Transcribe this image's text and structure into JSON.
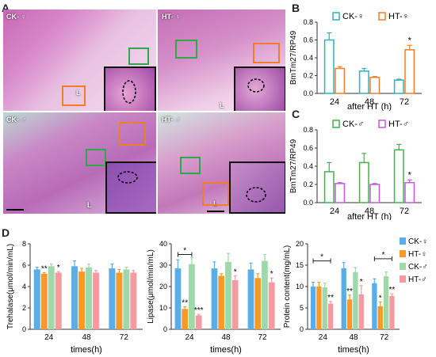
{
  "panel_labels": {
    "a": "A",
    "b": "B",
    "c": "C",
    "d": "D"
  },
  "micrographs": {
    "ck_female": "CK- ♀",
    "ht_female": "HT- ♀",
    "ck_male": "CK- ♂",
    "ht_male": "HT- ♂",
    "lumen": "L",
    "colors": {
      "tissue": "#c86bb8",
      "lumen": "#e7c8e3",
      "ck_box": "#2ea84a",
      "ht_box": "#f07d2c"
    }
  },
  "chart_data": [
    {
      "id": "B",
      "type": "bar",
      "ylabel": "BmTm27/RP49",
      "xlabel": "after HT (h)",
      "categories": [
        "24",
        "48",
        "72"
      ],
      "ylim": [
        0,
        0.8
      ],
      "yticks": [
        "0.0",
        "0.2",
        "0.4",
        "0.6",
        "0.8"
      ],
      "series": [
        {
          "name": "CK-♀",
          "values": [
            0.6,
            0.25,
            0.15
          ],
          "errors": [
            0.08,
            0.03,
            0.01
          ],
          "color": "#2ab3b8"
        },
        {
          "name": "HT-♀",
          "values": [
            0.28,
            0.18,
            0.49
          ],
          "errors": [
            0.02,
            0.01,
            0.05
          ],
          "color": "#f07d2c"
        }
      ],
      "annotations": [
        {
          "category": 2,
          "series": 1,
          "text": "*"
        }
      ]
    },
    {
      "id": "C",
      "type": "bar",
      "ylabel": "BmTm27/RP49",
      "xlabel": "after HT (h)",
      "categories": [
        "24",
        "48",
        "72"
      ],
      "ylim": [
        0,
        0.8
      ],
      "yticks": [
        "0.0",
        "0.2",
        "0.4",
        "0.6",
        "0.8"
      ],
      "series": [
        {
          "name": "CK-♂",
          "values": [
            0.34,
            0.44,
            0.58
          ],
          "errors": [
            0.1,
            0.1,
            0.06
          ],
          "color": "#3bb54a"
        },
        {
          "name": "HT-♂",
          "values": [
            0.21,
            0.2,
            0.22
          ],
          "errors": [
            0.01,
            0.01,
            0.03
          ],
          "color": "#c45ad8"
        }
      ],
      "annotations": [
        {
          "category": 2,
          "series": 1,
          "text": "*"
        }
      ]
    },
    {
      "id": "D1",
      "type": "bar",
      "ylabel": "Trehalase(μmol/min/mL)",
      "xlabel": "times(h)",
      "categories": [
        "24",
        "48",
        "72"
      ],
      "ylim": [
        0,
        8
      ],
      "yticks": [
        "0",
        "2",
        "4",
        "6",
        "8"
      ],
      "series": [
        {
          "name": "CK-♀",
          "values": [
            5.6,
            5.9,
            5.7
          ],
          "errors": [
            0.2,
            0.5,
            0.4
          ]
        },
        {
          "name": "HT-♀",
          "values": [
            5.2,
            5.4,
            5.3
          ],
          "errors": [
            0.1,
            0.3,
            0.3
          ]
        },
        {
          "name": "CK-♂",
          "values": [
            5.9,
            5.8,
            5.6
          ],
          "errors": [
            0.2,
            0.3,
            0.2
          ]
        },
        {
          "name": "HT-♂",
          "values": [
            5.3,
            5.3,
            5.3
          ],
          "errors": [
            0.1,
            0.2,
            0.2
          ]
        }
      ],
      "annotations": [
        {
          "category": 0,
          "series": 1,
          "text": "**"
        },
        {
          "category": 0,
          "series": 3,
          "text": "*"
        }
      ],
      "brackets": []
    },
    {
      "id": "D2",
      "type": "bar",
      "ylabel": "Lipase(μmol/min/mL)",
      "xlabel": "times(h)",
      "categories": [
        "24",
        "48",
        "72"
      ],
      "ylim": [
        0,
        40
      ],
      "yticks": [
        "0",
        "10",
        "20",
        "30",
        "40"
      ],
      "series": [
        {
          "name": "CK-♀",
          "values": [
            28.5,
            28.5,
            28.0
          ],
          "errors": [
            4,
            3,
            3
          ]
        },
        {
          "name": "HT-♀",
          "values": [
            9.5,
            25.0,
            24.0
          ],
          "errors": [
            1,
            1,
            2
          ]
        },
        {
          "name": "CK-♂",
          "values": [
            30.5,
            31.5,
            32.0
          ],
          "errors": [
            3,
            4,
            3
          ]
        },
        {
          "name": "HT-♂",
          "values": [
            6.5,
            23.0,
            22.0
          ],
          "errors": [
            0.5,
            2,
            2
          ]
        }
      ],
      "annotations": [
        {
          "category": 0,
          "series": 1,
          "text": "**"
        },
        {
          "category": 0,
          "series": 3,
          "text": "***"
        },
        {
          "category": 1,
          "series": 3,
          "text": "*"
        },
        {
          "category": 2,
          "series": 3,
          "text": "*"
        }
      ],
      "brackets": [
        {
          "category": 0,
          "from_series": 0,
          "to_series": 2,
          "y": 35,
          "text": "*"
        }
      ]
    },
    {
      "id": "D3",
      "type": "bar",
      "ylabel": "Protein content(mg/mL)",
      "xlabel": "times(h)",
      "categories": [
        "24",
        "48",
        "72"
      ],
      "ylim": [
        0,
        20
      ],
      "yticks": [
        "0",
        "5",
        "10",
        "15",
        "20"
      ],
      "series": [
        {
          "name": "CK-♀",
          "values": [
            10.0,
            14.3,
            10.8
          ],
          "errors": [
            1,
            1.3,
            1
          ]
        },
        {
          "name": "HT-♀",
          "values": [
            10.0,
            7.0,
            5.4
          ],
          "errors": [
            1,
            1,
            1
          ]
        },
        {
          "name": "CK-♂",
          "values": [
            9.8,
            13.4,
            12.4
          ],
          "errors": [
            1,
            1,
            1
          ]
        },
        {
          "name": "HT-♂",
          "values": [
            6.0,
            8.2,
            7.8
          ],
          "errors": [
            0.5,
            2,
            0.5
          ]
        }
      ],
      "annotations": [
        {
          "category": 0,
          "series": 3,
          "text": "**"
        },
        {
          "category": 1,
          "series": 1,
          "text": "**"
        },
        {
          "category": 1,
          "series": 3,
          "text": "*"
        },
        {
          "category": 2,
          "series": 1,
          "text": "*"
        },
        {
          "category": 2,
          "series": 3,
          "text": "**"
        }
      ],
      "brackets": [
        {
          "category": 0,
          "from_series": 0,
          "to_series": 3,
          "y": 16,
          "text": "*"
        },
        {
          "category": 2,
          "from_series": 0,
          "to_series": 3,
          "y": 16.5,
          "text": "*"
        }
      ]
    }
  ],
  "legend_d": [
    {
      "name": "CK-♀",
      "color": "#5aaee8"
    },
    {
      "name": "HT-♀",
      "color": "#f59a2a"
    },
    {
      "name": "CK-♂",
      "color": "#9fd8a9"
    },
    {
      "name": "HT-♂",
      "color": "#f49ba0"
    }
  ]
}
